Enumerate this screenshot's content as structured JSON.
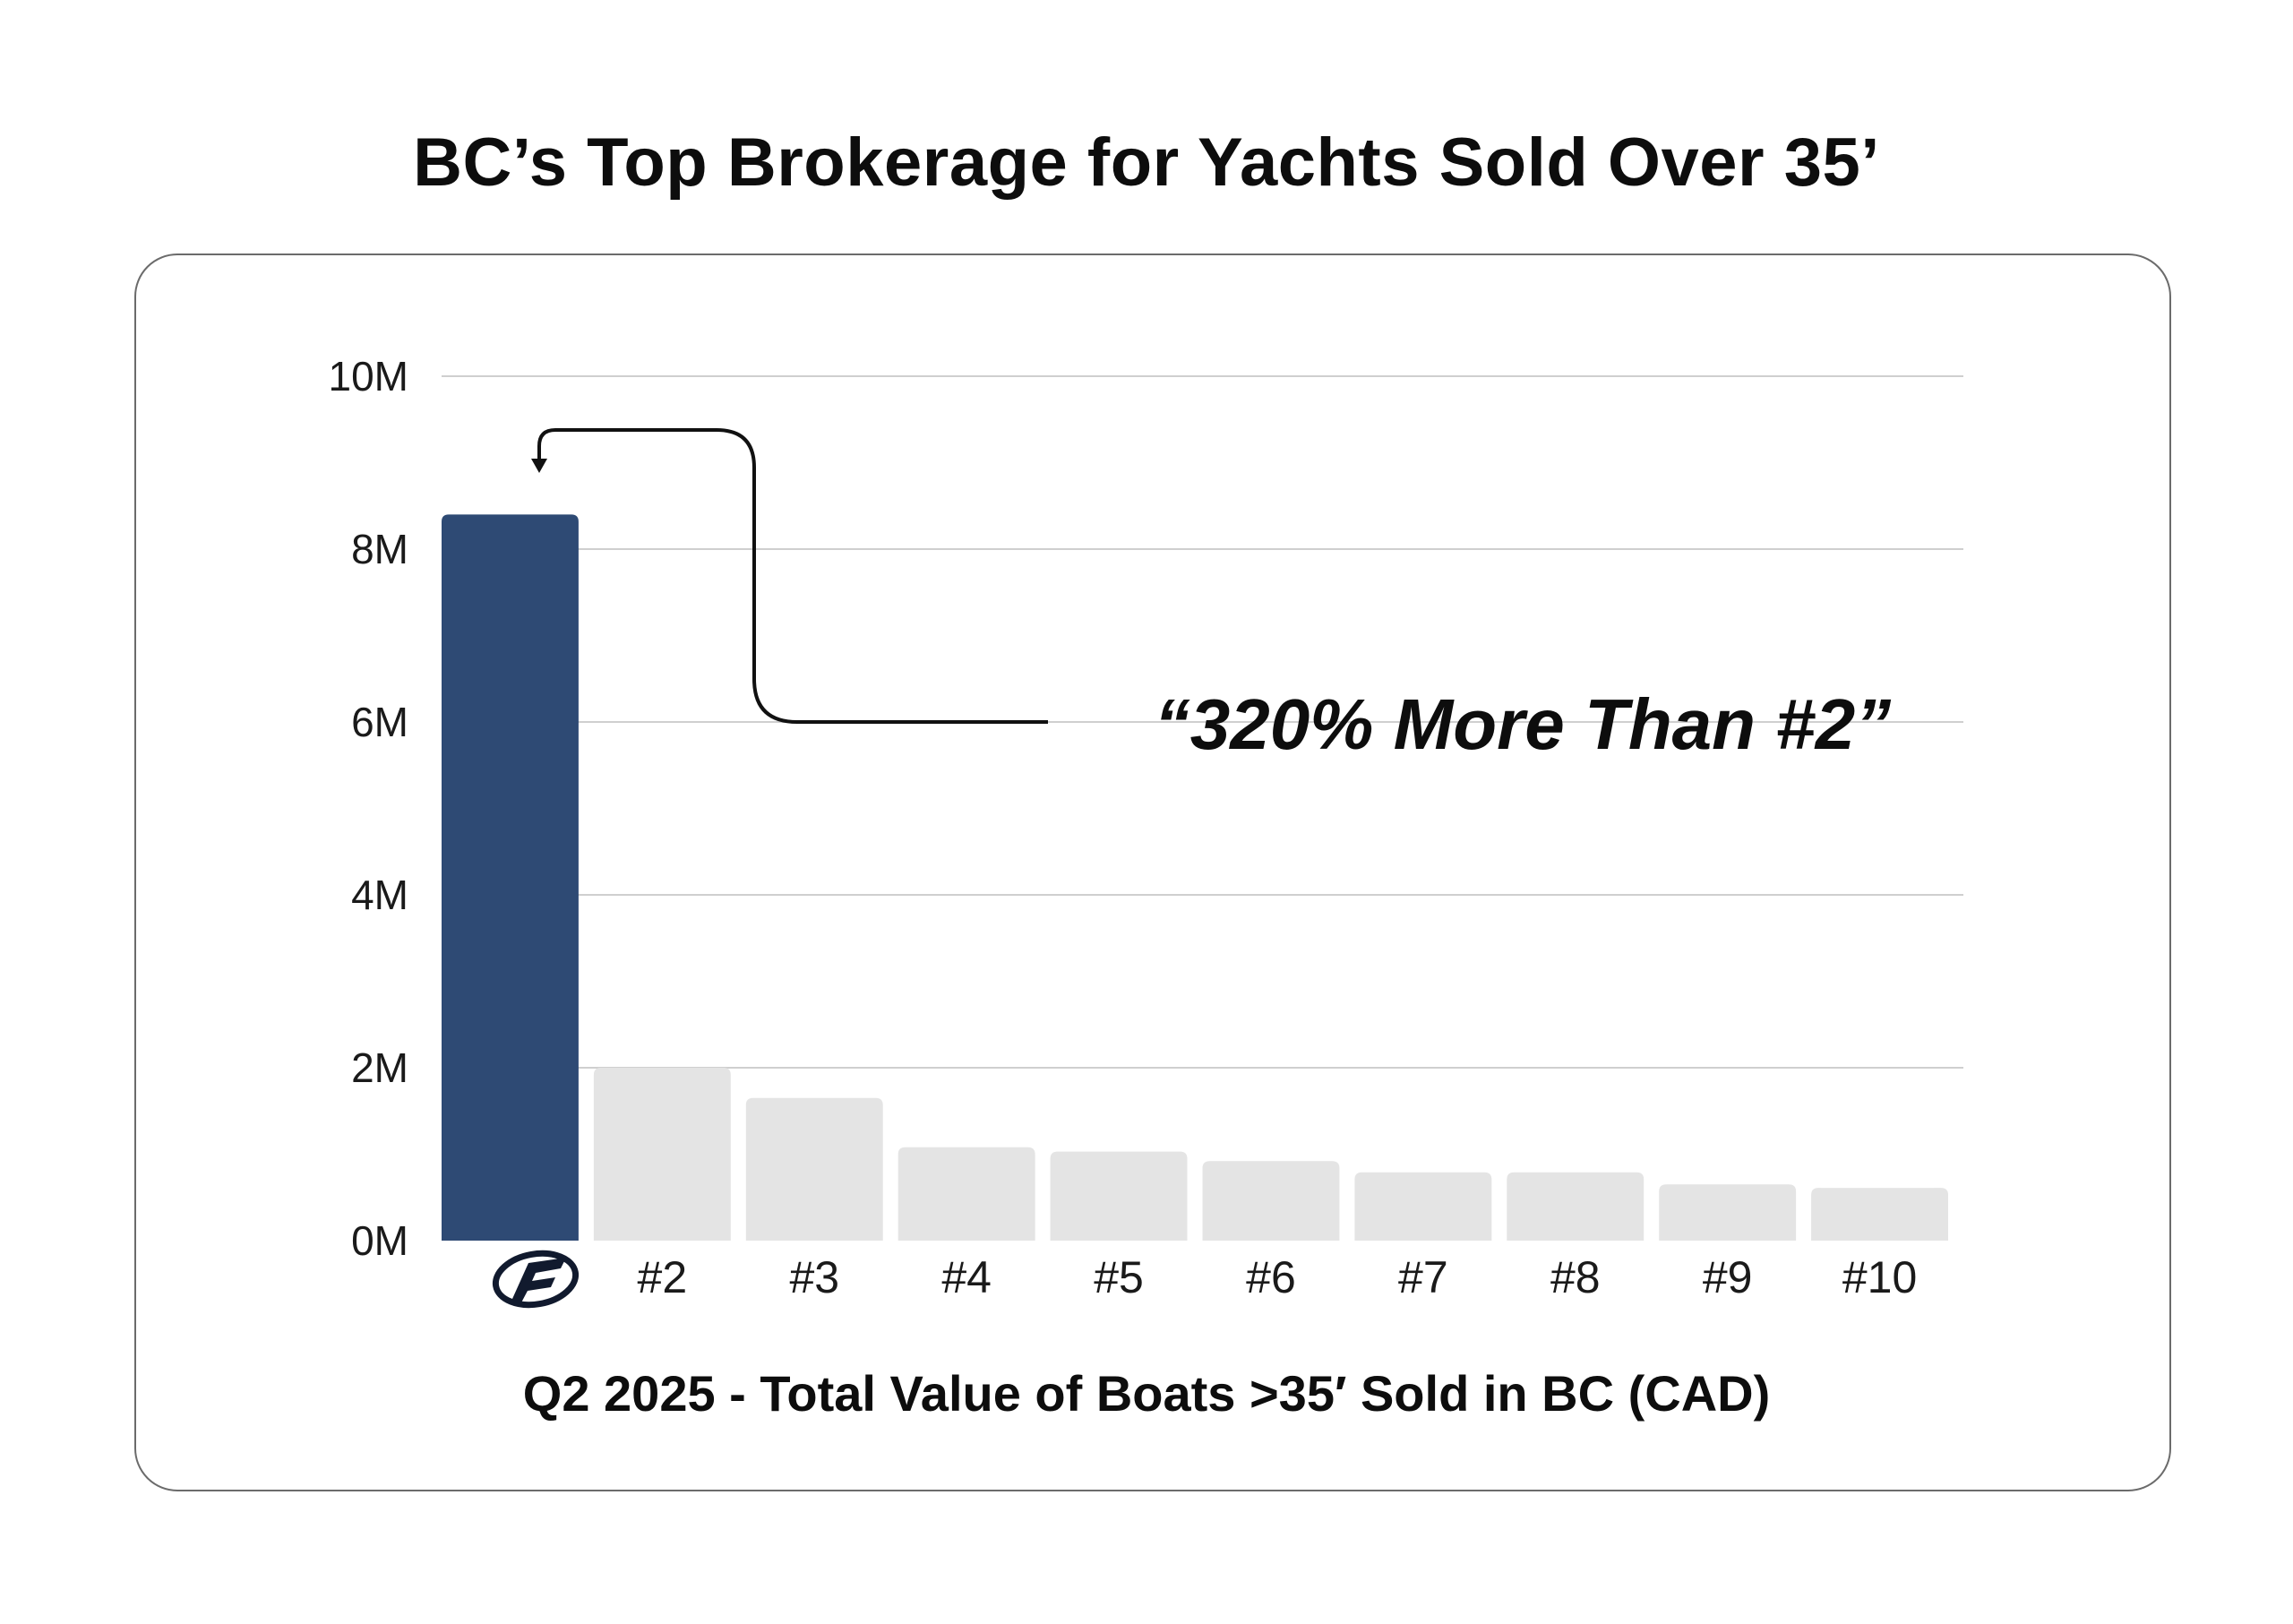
{
  "chart_data": {
    "type": "bar",
    "title": "BC’s Top Brokerage for Yachts Sold Over 35’",
    "xlabel": "Q2 2025 - Total Value of Boats >35′ Sold in BC (CAD)",
    "ylabel": "",
    "ylim": [
      0,
      10
    ],
    "yticks": [
      0,
      2,
      4,
      6,
      8,
      10
    ],
    "ytick_labels": [
      "0M",
      "2M",
      "4M",
      "6M",
      "8M",
      "10M"
    ],
    "grid": true,
    "categories": [
      "logo",
      "#2",
      "#3",
      "#4",
      "#5",
      "#6",
      "#7",
      "#8",
      "#9",
      "#10"
    ],
    "values": [
      8.4,
      2.0,
      1.65,
      1.08,
      1.03,
      0.92,
      0.79,
      0.79,
      0.65,
      0.61
    ],
    "annotation": "“320% More Than #2”",
    "highlight_color": "#2e4a74",
    "bar_color": "#e4e4e4",
    "first_category_icon": "brokerage-logo-icon"
  }
}
